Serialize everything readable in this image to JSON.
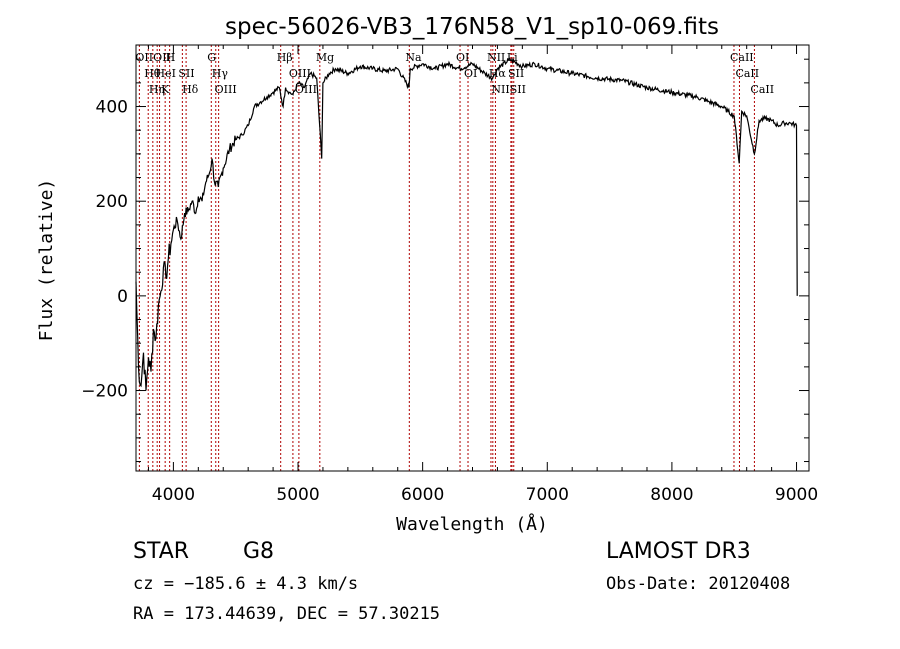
{
  "chart_data": {
    "type": "line",
    "title": "spec-56026-VB3_176N58_V1_sp10-069.fits",
    "xlabel": "Wavelength (Å)",
    "ylabel": "Flux (relative)",
    "xlim": [
      3700,
      9100
    ],
    "ylim": [
      -370,
      530
    ],
    "xticks": [
      4000,
      5000,
      6000,
      7000,
      8000,
      9000
    ],
    "xtick_labels": [
      "4000",
      "5000",
      "6000",
      "7000",
      "8000",
      "9000"
    ],
    "yticks": [
      -200,
      0,
      200,
      400
    ],
    "ytick_labels": [
      "−200",
      "0",
      "200",
      "400"
    ],
    "series": [
      {
        "name": "flux",
        "x": [
          3700,
          3720,
          3740,
          3760,
          3780,
          3800,
          3820,
          3840,
          3860,
          3880,
          3900,
          3920,
          3940,
          3960,
          3980,
          4000,
          4030,
          4060,
          4090,
          4120,
          4150,
          4180,
          4200,
          4230,
          4260,
          4290,
          4310,
          4330,
          4360,
          4400,
          4450,
          4500,
          4550,
          4600,
          4650,
          4700,
          4750,
          4800,
          4850,
          4880,
          4900,
          4930,
          4960,
          5000,
          5050,
          5100,
          5150,
          5190,
          5200,
          5250,
          5300,
          5400,
          5500,
          5600,
          5700,
          5800,
          5890,
          5900,
          6000,
          6100,
          6200,
          6300,
          6400,
          6500,
          6560,
          6600,
          6700,
          6800,
          6900,
          7000,
          7200,
          7400,
          7600,
          7800,
          8000,
          8200,
          8300,
          8400,
          8450,
          8500,
          8540,
          8560,
          8600,
          8662,
          8700,
          8750,
          8800,
          8850,
          8900,
          8950,
          9000,
          9005
        ],
        "values": [
          30,
          -150,
          -190,
          -120,
          -200,
          -130,
          -160,
          -70,
          -90,
          -20,
          10,
          60,
          40,
          80,
          110,
          140,
          160,
          120,
          175,
          180,
          200,
          175,
          210,
          200,
          240,
          260,
          290,
          240,
          230,
          270,
          310,
          330,
          340,
          360,
          400,
          410,
          420,
          430,
          440,
          400,
          440,
          430,
          425,
          450,
          440,
          470,
          460,
          290,
          450,
          470,
          480,
          470,
          485,
          480,
          475,
          480,
          440,
          480,
          490,
          480,
          490,
          480,
          490,
          470,
          460,
          480,
          500,
          485,
          490,
          480,
          470,
          460,
          455,
          440,
          430,
          420,
          410,
          400,
          390,
          380,
          280,
          390,
          380,
          300,
          370,
          375,
          370,
          360,
          365,
          365,
          360,
          0
        ]
      }
    ],
    "lines": [
      {
        "w": 3727,
        "label": "OII"
      },
      {
        "w": 3798,
        "label": "Hθ"
      },
      {
        "w": 3835,
        "label": "Hη"
      },
      {
        "w": 3870,
        "label": "OIII"
      },
      {
        "w": 3889,
        "label": "HeI"
      },
      {
        "w": 3934,
        "label": "K"
      },
      {
        "w": 3970,
        "label": "H"
      },
      {
        "w": 4072,
        "label": "SII"
      },
      {
        "w": 4102,
        "label": "Hδ"
      },
      {
        "w": 4304,
        "label": "G"
      },
      {
        "w": 4340,
        "label": "Hγ"
      },
      {
        "w": 4363,
        "label": "OIII"
      },
      {
        "w": 4861,
        "label": "Hβ"
      },
      {
        "w": 4959,
        "label": "OIII"
      },
      {
        "w": 5007,
        "label": "OIII"
      },
      {
        "w": 5175,
        "label": "Mg"
      },
      {
        "w": 5893,
        "label": "Na"
      },
      {
        "w": 6300,
        "label": "OI"
      },
      {
        "w": 6364,
        "label": "OI"
      },
      {
        "w": 6548,
        "label": "NII"
      },
      {
        "w": 6563,
        "label": "Hα"
      },
      {
        "w": 6584,
        "label": "NII"
      },
      {
        "w": 6708,
        "label": "Li"
      },
      {
        "w": 6717,
        "label": "SII"
      },
      {
        "w": 6731,
        "label": "SII"
      },
      {
        "w": 8498,
        "label": "CaII"
      },
      {
        "w": 8542,
        "label": "CaII"
      },
      {
        "w": 8662,
        "label": "CaII"
      }
    ],
    "grid": false,
    "legend": "none"
  },
  "info": {
    "class_label": "STAR",
    "subclass": "G8",
    "survey": "LAMOST DR3",
    "velocity": "cz = −185.6 ± 4.3 km/s",
    "obs_date": "Obs-Date: 20120408",
    "coords": "RA = 173.44639, DEC =  57.30215"
  }
}
